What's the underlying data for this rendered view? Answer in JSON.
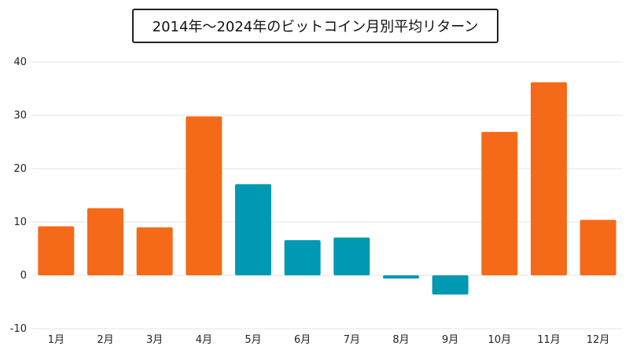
{
  "chart_data": {
    "type": "bar",
    "title": "2014年〜2024年のビットコイン月別平均リターン",
    "xlabel": "",
    "ylabel": "",
    "ylim": [
      -10,
      40
    ],
    "yticks": [
      "40",
      "30",
      "20",
      "10",
      "0",
      "-10"
    ],
    "ytick_values": [
      40,
      30,
      20,
      10,
      0,
      -10
    ],
    "grid": true,
    "categories": [
      "1月",
      "2月",
      "3月",
      "4月",
      "5月",
      "6月",
      "7月",
      "8月",
      "9月",
      "10月",
      "11月",
      "12月"
    ],
    "values": [
      9.2,
      12.6,
      9.0,
      29.8,
      17.1,
      6.6,
      7.1,
      -0.6,
      -3.6,
      26.9,
      36.2,
      10.4
    ],
    "bar_colors": [
      "#f56a19",
      "#f56a19",
      "#f56a19",
      "#f56a19",
      "#0099b3",
      "#0099b3",
      "#0099b3",
      "#0099b3",
      "#0099b3",
      "#f56a19",
      "#f56a19",
      "#f56a19"
    ]
  }
}
